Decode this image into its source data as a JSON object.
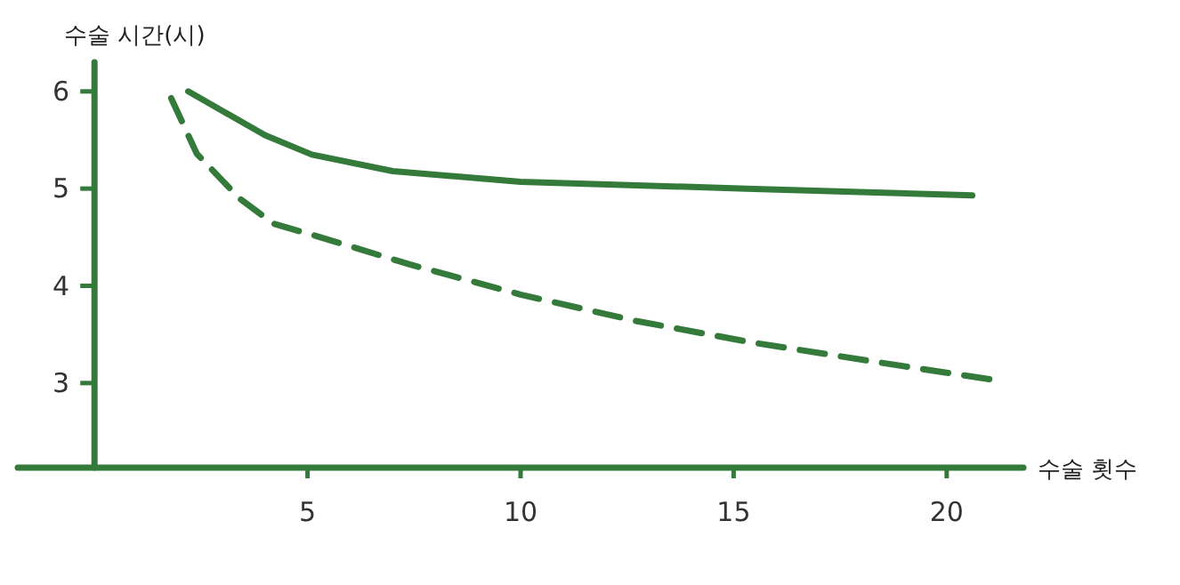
{
  "chart_data": {
    "type": "line",
    "xlabel": "수술 횟수",
    "ylabel": "수술 시간(시)",
    "xlim": [
      -1.8,
      21.8
    ],
    "ylim": [
      2.13,
      6.3
    ],
    "xticks": [
      5,
      10,
      15,
      20
    ],
    "yticks": [
      3,
      4,
      5,
      6
    ],
    "grid": false,
    "marker": "none",
    "series": [
      {
        "color": "#347a3a",
        "line_style": "solid",
        "x": [
          2.2,
          4.0,
          5.1,
          7.0,
          10,
          15.3,
          20.6
        ],
        "values": [
          6.0,
          5.55,
          5.35,
          5.18,
          5.07,
          5.0,
          4.93
        ]
      },
      {
        "color": "#347a3a",
        "line_style": "dashed",
        "x": [
          1.8,
          2.4,
          3.4,
          4.2,
          5.3,
          7.4,
          10,
          12.7,
          15.4,
          18.3,
          21.0
        ],
        "values": [
          5.93,
          5.36,
          4.9,
          4.64,
          4.5,
          4.22,
          3.91,
          3.64,
          3.42,
          3.22,
          3.04
        ]
      }
    ]
  }
}
